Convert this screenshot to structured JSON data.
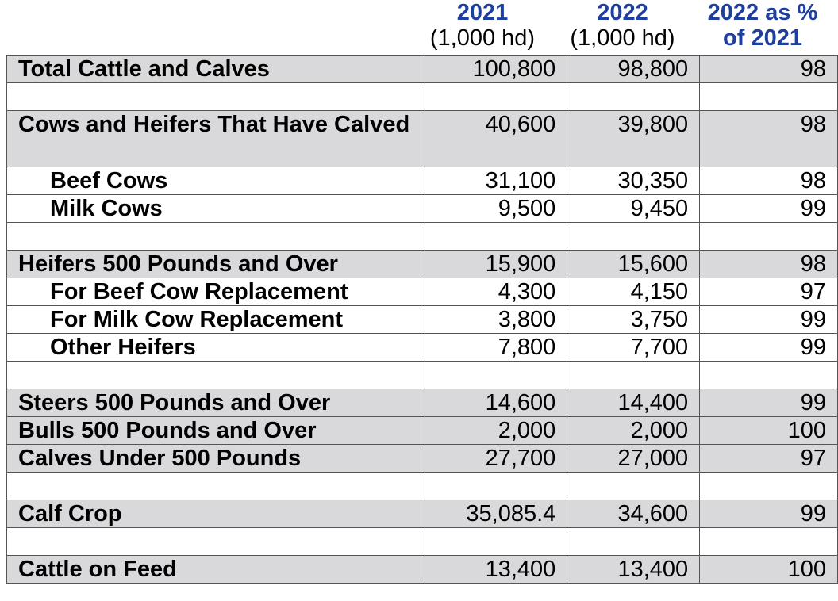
{
  "chart_data": {
    "type": "table",
    "columns": [
      {
        "year": "2021",
        "unit": "(1,000 hd)"
      },
      {
        "year": "2022",
        "unit": "(1,000 hd)"
      },
      {
        "line1": "2022 as %",
        "line2": "of 2021"
      }
    ],
    "rows": [
      {
        "label": "Total Cattle and Calves",
        "v2021": "100,800",
        "v2022": "98,800",
        "pct": "98",
        "shade": true,
        "indent": false
      },
      {
        "spacer": true
      },
      {
        "label": "Cows and Heifers That Have Calved",
        "v2021": "40,600",
        "v2022": "39,800",
        "pct": "98",
        "shade": true,
        "indent": false,
        "tall": true
      },
      {
        "label": "Beef Cows",
        "v2021": "31,100",
        "v2022": "30,350",
        "pct": "98",
        "shade": false,
        "indent": true
      },
      {
        "label": "Milk Cows",
        "v2021": "9,500",
        "v2022": "9,450",
        "pct": "99",
        "shade": false,
        "indent": true
      },
      {
        "spacer": true
      },
      {
        "label": "Heifers 500 Pounds and Over",
        "v2021": "15,900",
        "v2022": "15,600",
        "pct": "98",
        "shade": true,
        "indent": false
      },
      {
        "label": "For Beef Cow Replacement",
        "v2021": "4,300",
        "v2022": "4,150",
        "pct": "97",
        "shade": false,
        "indent": true
      },
      {
        "label": "For Milk Cow Replacement",
        "v2021": "3,800",
        "v2022": "3,750",
        "pct": "99",
        "shade": false,
        "indent": true
      },
      {
        "label": "Other Heifers",
        "v2021": "7,800",
        "v2022": "7,700",
        "pct": "99",
        "shade": false,
        "indent": true
      },
      {
        "spacer": true
      },
      {
        "label": "Steers 500 Pounds and Over",
        "v2021": "14,600",
        "v2022": "14,400",
        "pct": "99",
        "shade": true,
        "indent": false
      },
      {
        "label": "Bulls 500 Pounds and Over",
        "v2021": "2,000",
        "v2022": "2,000",
        "pct": "100",
        "shade": true,
        "indent": false
      },
      {
        "label": "Calves Under 500 Pounds",
        "v2021": "27,700",
        "v2022": "27,000",
        "pct": "97",
        "shade": true,
        "indent": false
      },
      {
        "spacer": true
      },
      {
        "label": "Calf Crop",
        "v2021": "35,085.4",
        "v2022": "34,600",
        "pct": "99",
        "shade": true,
        "indent": false
      },
      {
        "spacer": true
      },
      {
        "label": "Cattle on Feed",
        "v2021": "13,400",
        "v2022": "13,400",
        "pct": "100",
        "shade": true,
        "indent": false
      }
    ],
    "colors": {
      "header_blue": "#1f3f9f",
      "shade": "#d9d9db"
    }
  }
}
